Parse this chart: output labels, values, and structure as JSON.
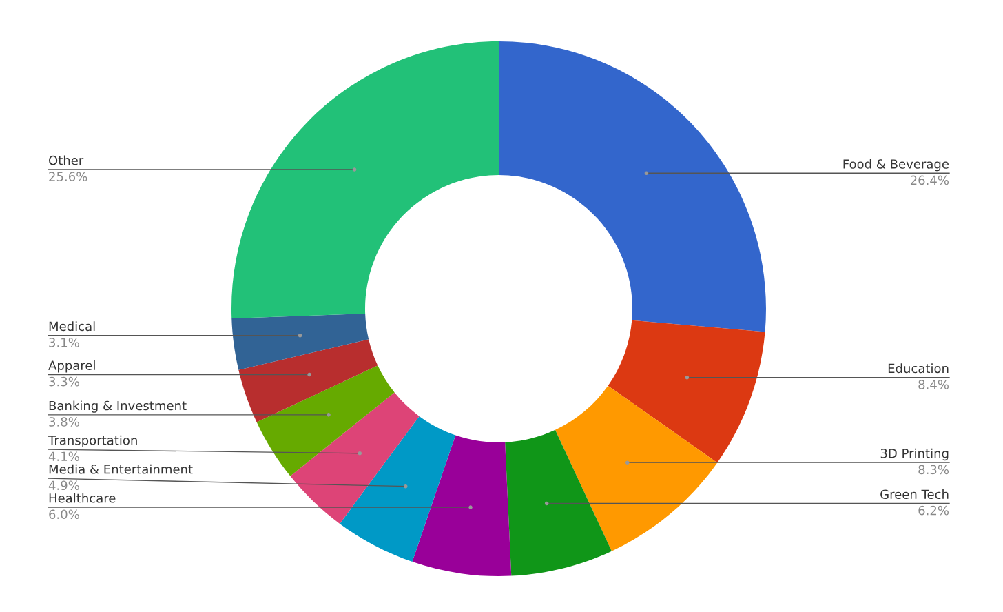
{
  "chart_data": {
    "type": "donut",
    "categories": [
      "Food & Beverage",
      "Education",
      "3D Printing",
      "Green Tech",
      "Healthcare",
      "Media & Entertainment",
      "Transportation",
      "Banking & Investment",
      "Apparel",
      "Medical",
      "Other"
    ],
    "values": [
      26.4,
      8.4,
      8.3,
      6.2,
      6.0,
      4.9,
      4.1,
      3.8,
      3.3,
      3.1,
      25.6
    ],
    "value_labels": [
      "26.4%",
      "8.4%",
      "8.3%",
      "6.2%",
      "6.0%",
      "4.9%",
      "4.1%",
      "3.8%",
      "3.3%",
      "3.1%",
      "25.6%"
    ],
    "colors": [
      "#3366cc",
      "#dc3912",
      "#ff9900",
      "#109618",
      "#990099",
      "#0099c6",
      "#dd4477",
      "#66aa00",
      "#b82e2e",
      "#316395",
      "#22c178"
    ],
    "legend": false
  }
}
